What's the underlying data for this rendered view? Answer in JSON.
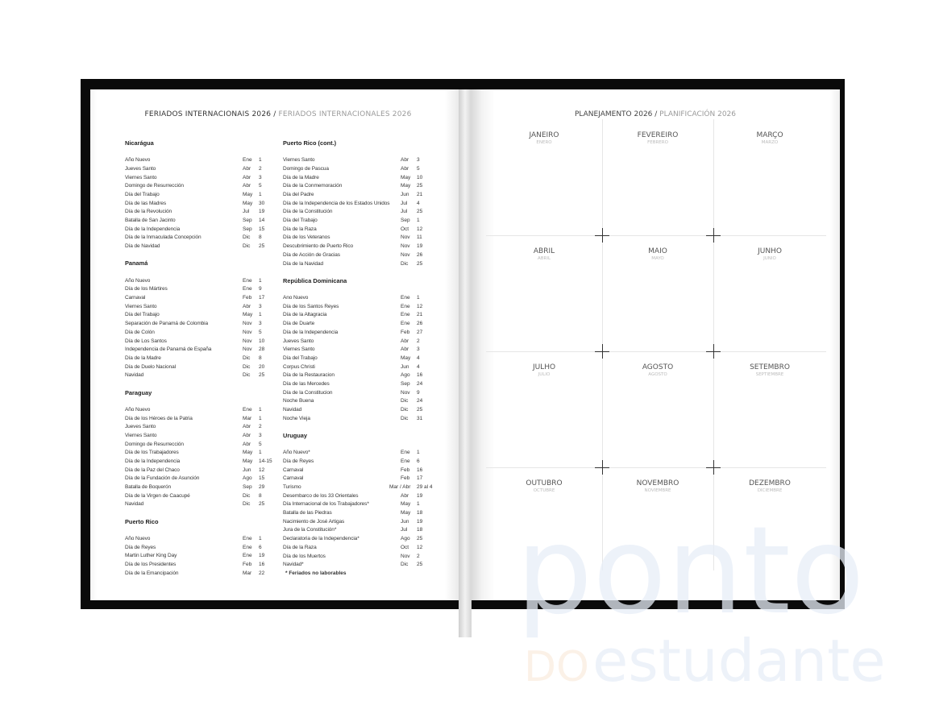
{
  "left_page": {
    "title": "FERIADOS INTERNACIONAIS 2026",
    "title_sep": " / ",
    "title_alt": "FERIADOS INTERNACIONALES 2026",
    "columns": [
      [
        {
          "heading": "Nicarágua",
          "rows": [
            [
              "Año Nuevo",
              "Ene",
              "1"
            ],
            [
              "Jueves Santo",
              "Abr",
              "2"
            ],
            [
              "Viernes Santo",
              "Abr",
              "3"
            ],
            [
              "Domingo de Resurrección",
              "Abr",
              "5"
            ],
            [
              "Día del Trabajo",
              "May",
              "1"
            ],
            [
              "Día de las Madres",
              "May",
              "30"
            ],
            [
              "Día de la Revolución",
              "Jul",
              "19"
            ],
            [
              "Batalla de San Jacinto",
              "Sep",
              "14"
            ],
            [
              "Día de la Independencia",
              "Sep",
              "15"
            ],
            [
              "Día de la Inmaculada Concepción",
              "Dic",
              "8"
            ],
            [
              "Día de Navidad",
              "Dic",
              "25"
            ]
          ]
        },
        {
          "heading": "Panamá",
          "rows": [
            [
              "Año Nuevo",
              "Ene",
              "1"
            ],
            [
              "Día de los Mártires",
              "Ene",
              "9"
            ],
            [
              "Carnaval",
              "Feb",
              "17"
            ],
            [
              "Viernes Santo",
              "Abr",
              "3"
            ],
            [
              "Día del Trabajo",
              "May",
              "1"
            ],
            [
              "Separación de Panamá de Colombia",
              "Nov",
              "3"
            ],
            [
              "Día de Colón",
              "Nov",
              "5"
            ],
            [
              "Día de Los Santos",
              "Nov",
              "10"
            ],
            [
              "Independencia de Panamá de España",
              "Nov",
              "28"
            ],
            [
              "Día de la Madre",
              "Dic",
              "8"
            ],
            [
              "Día de Duelo Nacional",
              "Dic",
              "20"
            ],
            [
              "Navidad",
              "Dic",
              "25"
            ]
          ]
        },
        {
          "heading": "Paraguay",
          "rows": [
            [
              "Año Nuevo",
              "Ene",
              "1"
            ],
            [
              "Día de los Héroes de la Patria",
              "Mar",
              "1"
            ],
            [
              "Jueves Santo",
              "Abr",
              "2"
            ],
            [
              "Viernes Santo",
              "Abr",
              "3"
            ],
            [
              "Domingo de Resurrección",
              "Abr",
              "5"
            ],
            [
              "Día de los Trabajadores",
              "May",
              "1"
            ],
            [
              "Día de la Independencia",
              "May",
              "14-15"
            ],
            [
              "Día de la Paz del Chaco",
              "Jun",
              "12"
            ],
            [
              "Día de la Fundación de Asunción",
              "Ago",
              "15"
            ],
            [
              "Batalla de Boquerón",
              "Sep",
              "29"
            ],
            [
              "Día de la Virgen de Caacupé",
              "Dic",
              "8"
            ],
            [
              "Navidad",
              "Dic",
              "25"
            ]
          ]
        },
        {
          "heading": "Puerto Rico",
          "rows": [
            [
              "Año Nuevo",
              "Ene",
              "1"
            ],
            [
              "Día de Reyes",
              "Ene",
              "6"
            ],
            [
              "Martin Luther King Day",
              "Ene",
              "19"
            ],
            [
              "Día de los Presidentes",
              "Feb",
              "16"
            ],
            [
              "Día de la Emancipación",
              "Mar",
              "22"
            ]
          ]
        }
      ],
      [
        {
          "heading": "Puerto Rico (cont.)",
          "rows": [
            [
              "Viernes Santo",
              "Abr",
              "3"
            ],
            [
              "Domingo de Pascua",
              "Abr",
              "5"
            ],
            [
              "Día de la Madre",
              "May",
              "10"
            ],
            [
              "Día de la Conmemoración",
              "May",
              "25"
            ],
            [
              "Día del Padre",
              "Jun",
              "21"
            ],
            [
              "Día de la Independencia de los Estados Unidos",
              "Jul",
              "4"
            ],
            [
              "Día de la Constitución",
              "Jul",
              "25"
            ],
            [
              "Día del Trabajo",
              "Sep",
              "1"
            ],
            [
              "Día de la Raza",
              "Oct",
              "12"
            ],
            [
              "Día de los Veteranos",
              "Nov",
              "11"
            ],
            [
              "Descubrimiento de Puerto Rico",
              "Nov",
              "19"
            ],
            [
              "Día de Acción de Gracias",
              "Nov",
              "26"
            ],
            [
              "Día de la Navidad",
              "Dic",
              "25"
            ]
          ]
        },
        {
          "heading": "República Dominicana",
          "rows": [
            [
              "Ano Nuevo",
              "Ene",
              "1"
            ],
            [
              "Día de los Santos Reyes",
              "Ene",
              "12"
            ],
            [
              "Día de la Altagracia",
              "Ene",
              "21"
            ],
            [
              "Día de Duarte",
              "Ene",
              "26"
            ],
            [
              "Día de la Independencia",
              "Feb",
              "27"
            ],
            [
              "Jueves Santo",
              "Abr",
              "2"
            ],
            [
              "Viernes Santo",
              "Abr",
              "3"
            ],
            [
              "Día del Trabajo",
              "May",
              "4"
            ],
            [
              "Corpus Christi",
              "Jun",
              "4"
            ],
            [
              "Día de la Restauracion",
              "Ago",
              "16"
            ],
            [
              "Día de las Mercedes",
              "Sep",
              "24"
            ],
            [
              "Día de la Constitucion",
              "Nov",
              "9"
            ],
            [
              "Noche Buena",
              "Dic",
              "24"
            ],
            [
              "Navidad",
              "Dic",
              "25"
            ],
            [
              "Noche Vieja",
              "Dic",
              "31"
            ]
          ]
        },
        {
          "heading": "Uruguay",
          "rows": [
            [
              "Año Nuevo*",
              "Ene",
              "1"
            ],
            [
              "Día de Reyes",
              "Ene",
              "6"
            ],
            [
              "Carnaval",
              "Feb",
              "16"
            ],
            [
              "Carnaval",
              "Feb",
              "17"
            ],
            [
              "Turismo",
              "Mar / Abr",
              "29 al 4"
            ],
            [
              "Desembarco de los 33 Orientales",
              "Abr",
              "19"
            ],
            [
              "Día Internacional de los Trabajadores*",
              "May",
              "1"
            ],
            [
              "Batalla de las Piedras",
              "May",
              "18"
            ],
            [
              "Nacimiento de José Artigas",
              "Jun",
              "19"
            ],
            [
              "Jura de la Constitución*",
              "Jul",
              "18"
            ],
            [
              "Declaratoria de la Independencia*",
              "Ago",
              "25"
            ],
            [
              "Día de la Raza",
              "Oct",
              "12"
            ],
            [
              "Día de los Muertos",
              "Nov",
              "2"
            ],
            [
              "Navidad*",
              "Dic",
              "25"
            ]
          ],
          "footnote": "* Feriados no laborables"
        }
      ]
    ]
  },
  "right_page": {
    "title": "PLANEJAMENTO 2026",
    "title_sep": " / ",
    "title_alt": "PLANIFICACIÓN 2026",
    "months": [
      [
        "JANEIRO",
        "ENERO"
      ],
      [
        "FEVEREIRO",
        "FEBRERO"
      ],
      [
        "MARÇO",
        "MARZO"
      ],
      [
        "ABRIL",
        "ABRIL"
      ],
      [
        "MAIO",
        "MAYO"
      ],
      [
        "JUNHO",
        "JUNIO"
      ],
      [
        "JULHO",
        "JULIO"
      ],
      [
        "AGOSTO",
        "AGOSTO"
      ],
      [
        "SETEMBRO",
        "SEPTIEMBRE"
      ],
      [
        "OUTUBRO",
        "OCTUBRE"
      ],
      [
        "NOVEMBRO",
        "NOVIEMBRE"
      ],
      [
        "DEZEMBRO",
        "DICIEMBRE"
      ]
    ]
  },
  "watermark": {
    "logo_main": "ponto",
    "logo_small": "DO",
    "logo_sub": "estudante",
    "color": "#e8eef8",
    "accent": "#fbeee2"
  },
  "colors": {
    "cover": "#0a0a0a",
    "text": "#333333",
    "muted": "#9a9a9a"
  }
}
